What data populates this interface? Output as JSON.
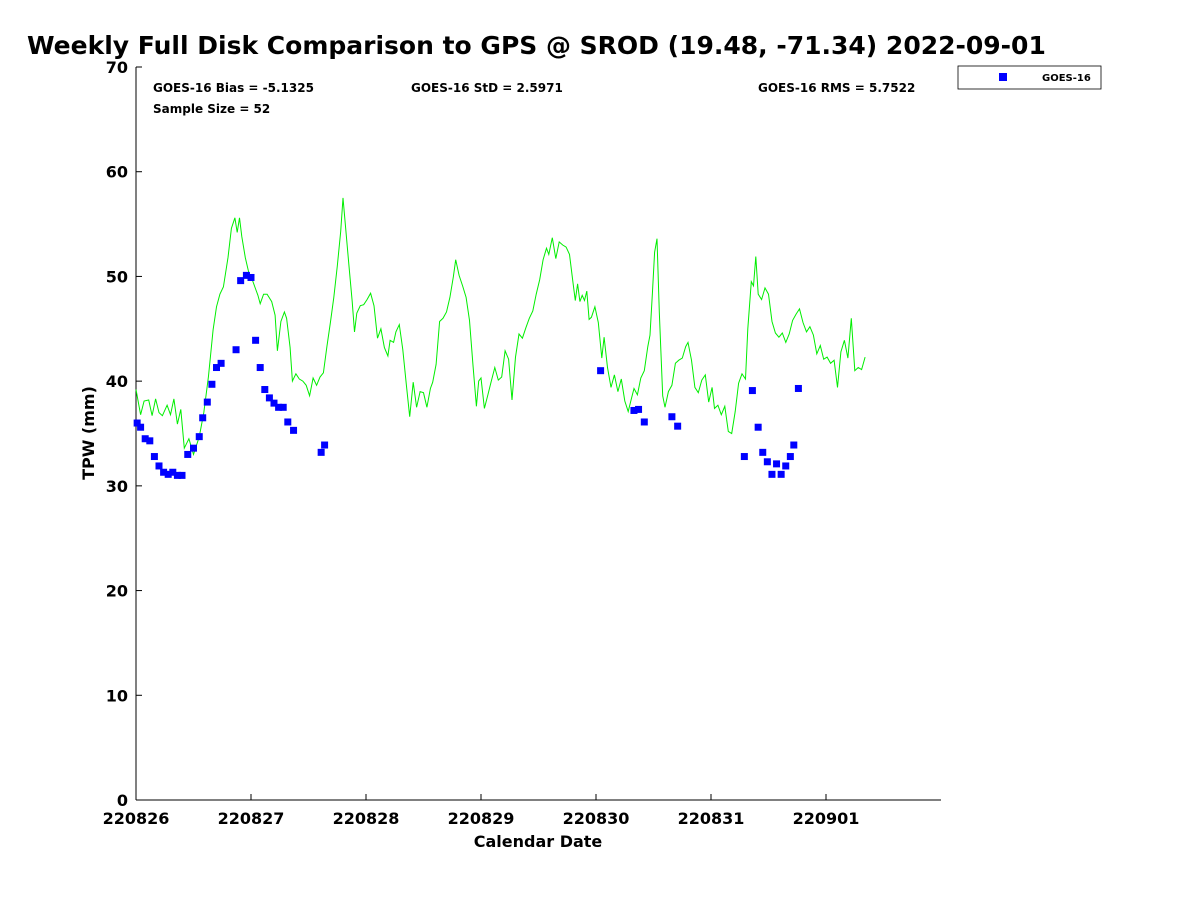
{
  "chart_data": {
    "type": "scatter",
    "title": "Weekly Full Disk Comparison to GPS @ SROD (19.48, -71.34) 2022-09-01",
    "xlabel": "Calendar Date",
    "ylabel": "TPW (mm)",
    "ylim": [
      0,
      70
    ],
    "xlim": [
      0,
      7
    ],
    "x_unit": "days since 220826",
    "y_ticks": [
      "0",
      "10",
      "20",
      "30",
      "40",
      "50",
      "60",
      "70"
    ],
    "x_ticks": [
      {
        "x": 0,
        "label": "220826"
      },
      {
        "x": 1,
        "label": "220827"
      },
      {
        "x": 2,
        "label": "220828"
      },
      {
        "x": 3,
        "label": "220829"
      },
      {
        "x": 4,
        "label": "220830"
      },
      {
        "x": 5,
        "label": "220831"
      },
      {
        "x": 6,
        "label": "220901"
      }
    ],
    "stats": {
      "bias": "GOES-16 Bias = -5.1325",
      "std": "GOES-16 StD = 2.5971",
      "rms": "GOES-16 RMS = 5.7522",
      "sample": "Sample Size = 52"
    },
    "legend": {
      "label": "GOES-16",
      "position": "top-right",
      "color": "#0000ff"
    },
    "series": [
      {
        "name": "GPS",
        "kind": "line",
        "color": "#00ee00",
        "points": [
          [
            0.0,
            39.2
          ],
          [
            0.04,
            36.8
          ],
          [
            0.07,
            38.1
          ],
          [
            0.11,
            38.2
          ],
          [
            0.14,
            36.7
          ],
          [
            0.17,
            38.3
          ],
          [
            0.2,
            37.0
          ],
          [
            0.23,
            36.7
          ],
          [
            0.27,
            37.7
          ],
          [
            0.3,
            36.8
          ],
          [
            0.33,
            38.3
          ],
          [
            0.36,
            35.9
          ],
          [
            0.39,
            37.3
          ],
          [
            0.42,
            33.6
          ],
          [
            0.46,
            34.5
          ],
          [
            0.5,
            33.0
          ],
          [
            0.55,
            34.7
          ],
          [
            0.59,
            37.0
          ],
          [
            0.63,
            40.4
          ],
          [
            0.67,
            44.9
          ],
          [
            0.7,
            47.1
          ],
          [
            0.73,
            48.3
          ],
          [
            0.76,
            49.0
          ],
          [
            0.8,
            51.8
          ],
          [
            0.83,
            54.6
          ],
          [
            0.86,
            55.6
          ],
          [
            0.88,
            54.2
          ],
          [
            0.9,
            55.6
          ],
          [
            0.92,
            53.8
          ],
          [
            0.95,
            51.8
          ],
          [
            0.98,
            50.4
          ],
          [
            1.01,
            49.7
          ],
          [
            1.04,
            48.8
          ],
          [
            1.06,
            48.2
          ],
          [
            1.08,
            47.4
          ],
          [
            1.11,
            48.3
          ],
          [
            1.14,
            48.3
          ],
          [
            1.18,
            47.6
          ],
          [
            1.21,
            46.3
          ],
          [
            1.23,
            42.9
          ],
          [
            1.26,
            45.7
          ],
          [
            1.29,
            46.6
          ],
          [
            1.31,
            46.0
          ],
          [
            1.34,
            43.2
          ],
          [
            1.36,
            40.0
          ],
          [
            1.39,
            40.7
          ],
          [
            1.42,
            40.2
          ],
          [
            1.45,
            40.0
          ],
          [
            1.48,
            39.6
          ],
          [
            1.51,
            38.6
          ],
          [
            1.54,
            40.3
          ],
          [
            1.57,
            39.6
          ],
          [
            1.6,
            40.4
          ],
          [
            1.63,
            40.8
          ],
          [
            1.66,
            43.3
          ],
          [
            1.69,
            45.6
          ],
          [
            1.72,
            48.0
          ],
          [
            1.75,
            51.0
          ],
          [
            1.78,
            54.3
          ],
          [
            1.8,
            57.5
          ],
          [
            1.82,
            55.0
          ],
          [
            1.85,
            51.2
          ],
          [
            1.88,
            47.6
          ],
          [
            1.9,
            44.7
          ],
          [
            1.92,
            46.5
          ],
          [
            1.95,
            47.2
          ],
          [
            1.98,
            47.3
          ],
          [
            2.01,
            47.8
          ],
          [
            2.04,
            48.4
          ],
          [
            2.07,
            47.2
          ],
          [
            2.1,
            44.1
          ],
          [
            2.13,
            45.0
          ],
          [
            2.16,
            43.2
          ],
          [
            2.19,
            42.4
          ],
          [
            2.21,
            43.9
          ],
          [
            2.24,
            43.7
          ],
          [
            2.26,
            44.7
          ],
          [
            2.29,
            45.4
          ],
          [
            2.32,
            43.0
          ],
          [
            2.35,
            39.7
          ],
          [
            2.38,
            36.6
          ],
          [
            2.41,
            39.9
          ],
          [
            2.44,
            37.5
          ],
          [
            2.47,
            39.0
          ],
          [
            2.5,
            38.9
          ],
          [
            2.53,
            37.5
          ],
          [
            2.56,
            39.3
          ],
          [
            2.58,
            39.9
          ],
          [
            2.61,
            41.6
          ],
          [
            2.64,
            45.7
          ],
          [
            2.67,
            46.0
          ],
          [
            2.7,
            46.6
          ],
          [
            2.73,
            48.0
          ],
          [
            2.76,
            50.0
          ],
          [
            2.78,
            51.6
          ],
          [
            2.81,
            50.1
          ],
          [
            2.84,
            49.1
          ],
          [
            2.87,
            48.0
          ],
          [
            2.9,
            45.8
          ],
          [
            2.93,
            41.5
          ],
          [
            2.96,
            37.6
          ],
          [
            2.98,
            40.0
          ],
          [
            3.0,
            40.3
          ],
          [
            3.03,
            37.4
          ],
          [
            3.06,
            38.7
          ],
          [
            3.09,
            40.0
          ],
          [
            3.12,
            41.3
          ],
          [
            3.15,
            40.1
          ],
          [
            3.18,
            40.4
          ],
          [
            3.21,
            42.9
          ],
          [
            3.24,
            42.1
          ],
          [
            3.27,
            38.2
          ],
          [
            3.3,
            42.3
          ],
          [
            3.33,
            44.5
          ],
          [
            3.36,
            44.1
          ],
          [
            3.39,
            45.1
          ],
          [
            3.42,
            46.0
          ],
          [
            3.45,
            46.7
          ],
          [
            3.48,
            48.3
          ],
          [
            3.51,
            49.7
          ],
          [
            3.54,
            51.6
          ],
          [
            3.57,
            52.7
          ],
          [
            3.59,
            52.1
          ],
          [
            3.62,
            53.7
          ],
          [
            3.65,
            51.7
          ],
          [
            3.68,
            53.3
          ],
          [
            3.71,
            53.0
          ],
          [
            3.74,
            52.8
          ],
          [
            3.77,
            52.1
          ],
          [
            3.8,
            49.4
          ],
          [
            3.82,
            47.7
          ],
          [
            3.84,
            49.3
          ],
          [
            3.86,
            47.6
          ],
          [
            3.88,
            48.2
          ],
          [
            3.9,
            47.7
          ],
          [
            3.92,
            48.6
          ],
          [
            3.94,
            45.9
          ],
          [
            3.96,
            46.1
          ],
          [
            3.99,
            47.1
          ],
          [
            4.02,
            45.6
          ],
          [
            4.05,
            42.2
          ],
          [
            4.07,
            44.2
          ],
          [
            4.1,
            41.3
          ],
          [
            4.13,
            39.4
          ],
          [
            4.16,
            40.6
          ],
          [
            4.19,
            39.0
          ],
          [
            4.22,
            40.2
          ],
          [
            4.25,
            38.1
          ],
          [
            4.28,
            37.1
          ],
          [
            4.31,
            38.4
          ],
          [
            4.33,
            39.3
          ],
          [
            4.36,
            38.7
          ],
          [
            4.39,
            40.3
          ],
          [
            4.42,
            41.0
          ],
          [
            4.45,
            43.3
          ],
          [
            4.47,
            44.4
          ],
          [
            4.49,
            48.4
          ],
          [
            4.51,
            52.3
          ],
          [
            4.53,
            53.6
          ],
          [
            4.55,
            46.6
          ],
          [
            4.58,
            38.6
          ],
          [
            4.6,
            37.5
          ],
          [
            4.63,
            39.0
          ],
          [
            4.66,
            39.6
          ],
          [
            4.69,
            41.7
          ],
          [
            4.72,
            42.0
          ],
          [
            4.75,
            42.2
          ],
          [
            4.78,
            43.3
          ],
          [
            4.8,
            43.7
          ],
          [
            4.83,
            42.0
          ],
          [
            4.86,
            39.4
          ],
          [
            4.89,
            38.9
          ],
          [
            4.92,
            40.1
          ],
          [
            4.95,
            40.6
          ],
          [
            4.98,
            38.0
          ],
          [
            5.01,
            39.4
          ],
          [
            5.03,
            37.4
          ],
          [
            5.06,
            37.7
          ],
          [
            5.09,
            36.8
          ],
          [
            5.12,
            37.6
          ],
          [
            5.15,
            35.2
          ],
          [
            5.18,
            35.0
          ],
          [
            5.21,
            37.1
          ],
          [
            5.24,
            39.8
          ],
          [
            5.27,
            40.7
          ],
          [
            5.3,
            40.2
          ],
          [
            5.32,
            45.0
          ],
          [
            5.35,
            49.5
          ],
          [
            5.37,
            49.1
          ],
          [
            5.39,
            51.9
          ],
          [
            5.41,
            48.3
          ],
          [
            5.44,
            47.8
          ],
          [
            5.47,
            48.9
          ],
          [
            5.5,
            48.3
          ],
          [
            5.53,
            45.7
          ],
          [
            5.56,
            44.6
          ],
          [
            5.59,
            44.2
          ],
          [
            5.62,
            44.6
          ],
          [
            5.65,
            43.7
          ],
          [
            5.68,
            44.5
          ],
          [
            5.71,
            45.8
          ],
          [
            5.74,
            46.4
          ],
          [
            5.77,
            46.9
          ],
          [
            5.8,
            45.6
          ],
          [
            5.83,
            44.7
          ],
          [
            5.86,
            45.2
          ],
          [
            5.89,
            44.4
          ],
          [
            5.92,
            42.6
          ],
          [
            5.95,
            43.4
          ],
          [
            5.98,
            42.1
          ],
          [
            6.01,
            42.3
          ],
          [
            6.04,
            41.7
          ],
          [
            6.07,
            42.0
          ],
          [
            6.1,
            39.4
          ],
          [
            6.13,
            42.8
          ],
          [
            6.16,
            43.9
          ],
          [
            6.19,
            42.2
          ],
          [
            6.22,
            46.0
          ],
          [
            6.25,
            41.0
          ],
          [
            6.28,
            41.3
          ],
          [
            6.31,
            41.1
          ],
          [
            6.34,
            42.3
          ]
        ]
      },
      {
        "name": "GOES-16",
        "kind": "scatter",
        "color": "#0000ff",
        "points": [
          [
            0.01,
            36.0
          ],
          [
            0.04,
            35.6
          ],
          [
            0.08,
            34.5
          ],
          [
            0.12,
            34.3
          ],
          [
            0.16,
            32.8
          ],
          [
            0.2,
            31.9
          ],
          [
            0.24,
            31.3
          ],
          [
            0.28,
            31.1
          ],
          [
            0.32,
            31.3
          ],
          [
            0.36,
            31.0
          ],
          [
            0.4,
            31.0
          ],
          [
            0.45,
            33.0
          ],
          [
            0.5,
            33.6
          ],
          [
            0.55,
            34.7
          ],
          [
            0.58,
            36.5
          ],
          [
            0.62,
            38.0
          ],
          [
            0.66,
            39.7
          ],
          [
            0.7,
            41.3
          ],
          [
            0.74,
            41.7
          ],
          [
            0.87,
            43.0
          ],
          [
            0.91,
            49.6
          ],
          [
            0.96,
            50.1
          ],
          [
            1.0,
            49.9
          ],
          [
            1.04,
            43.9
          ],
          [
            1.08,
            41.3
          ],
          [
            1.12,
            39.2
          ],
          [
            1.16,
            38.4
          ],
          [
            1.2,
            37.9
          ],
          [
            1.24,
            37.5
          ],
          [
            1.28,
            37.5
          ],
          [
            1.32,
            36.1
          ],
          [
            1.37,
            35.3
          ],
          [
            1.61,
            33.2
          ],
          [
            1.64,
            33.9
          ],
          [
            4.04,
            41.0
          ],
          [
            4.33,
            37.2
          ],
          [
            4.37,
            37.3
          ],
          [
            4.42,
            36.1
          ],
          [
            4.66,
            36.6
          ],
          [
            4.71,
            35.7
          ],
          [
            5.29,
            32.8
          ],
          [
            5.36,
            39.1
          ],
          [
            5.41,
            35.6
          ],
          [
            5.45,
            33.2
          ],
          [
            5.49,
            32.3
          ],
          [
            5.53,
            31.1
          ],
          [
            5.57,
            32.1
          ],
          [
            5.61,
            31.1
          ],
          [
            5.65,
            31.9
          ],
          [
            5.69,
            32.8
          ],
          [
            5.72,
            33.9
          ],
          [
            5.76,
            39.3
          ]
        ]
      }
    ]
  }
}
